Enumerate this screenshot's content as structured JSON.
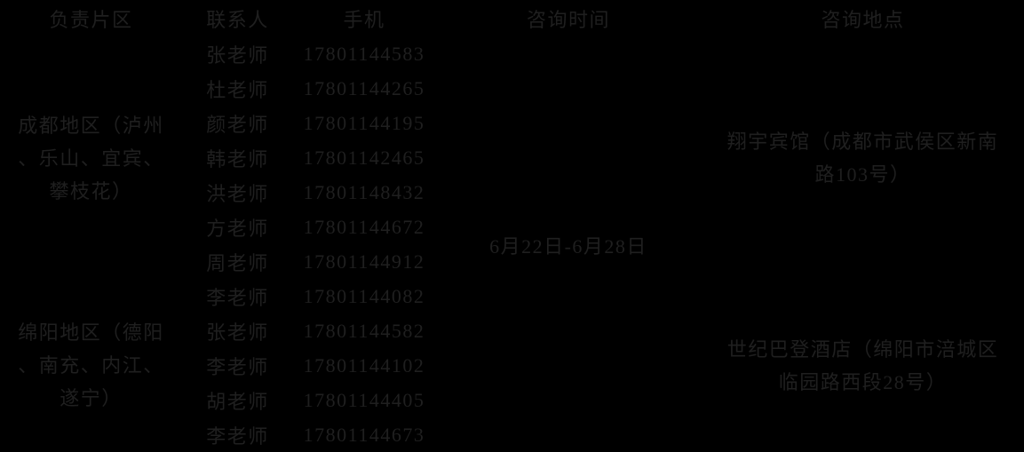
{
  "colors": {
    "background": "#000000",
    "text": "#1f1f1f"
  },
  "table": {
    "headers": {
      "region": "负责片区",
      "contact": "联系人",
      "phone": "手机",
      "time": "咨询时间",
      "location": "咨询地点"
    },
    "time": "6月22日-6月28日",
    "groups": [
      {
        "region": "成都地区（泸州、乐山、宜宾、攀枝花）",
        "location": "翔宇宾馆（成都市武侯区新南路103号）",
        "contacts": [
          {
            "name": "张老师",
            "phone": "17801144583"
          },
          {
            "name": "杜老师",
            "phone": "17801144265"
          },
          {
            "name": "颜老师",
            "phone": "17801144195"
          },
          {
            "name": "韩老师",
            "phone": "17801142465"
          },
          {
            "name": "洪老师",
            "phone": "17801148432"
          },
          {
            "name": "方老师",
            "phone": "17801144672"
          },
          {
            "name": "周老师",
            "phone": "17801144912"
          }
        ]
      },
      {
        "region": "绵阳地区（德阳、南充、内江、遂宁）",
        "location": "世纪巴登酒店（绵阳市涪城区临园路西段28号）",
        "contacts": [
          {
            "name": "李老师",
            "phone": "17801144082"
          },
          {
            "name": "张老师",
            "phone": "17801144582"
          },
          {
            "name": "李老师",
            "phone": "17801144102"
          },
          {
            "name": "胡老师",
            "phone": "17801144405"
          },
          {
            "name": "李老师",
            "phone": "17801144673"
          }
        ]
      }
    ]
  }
}
